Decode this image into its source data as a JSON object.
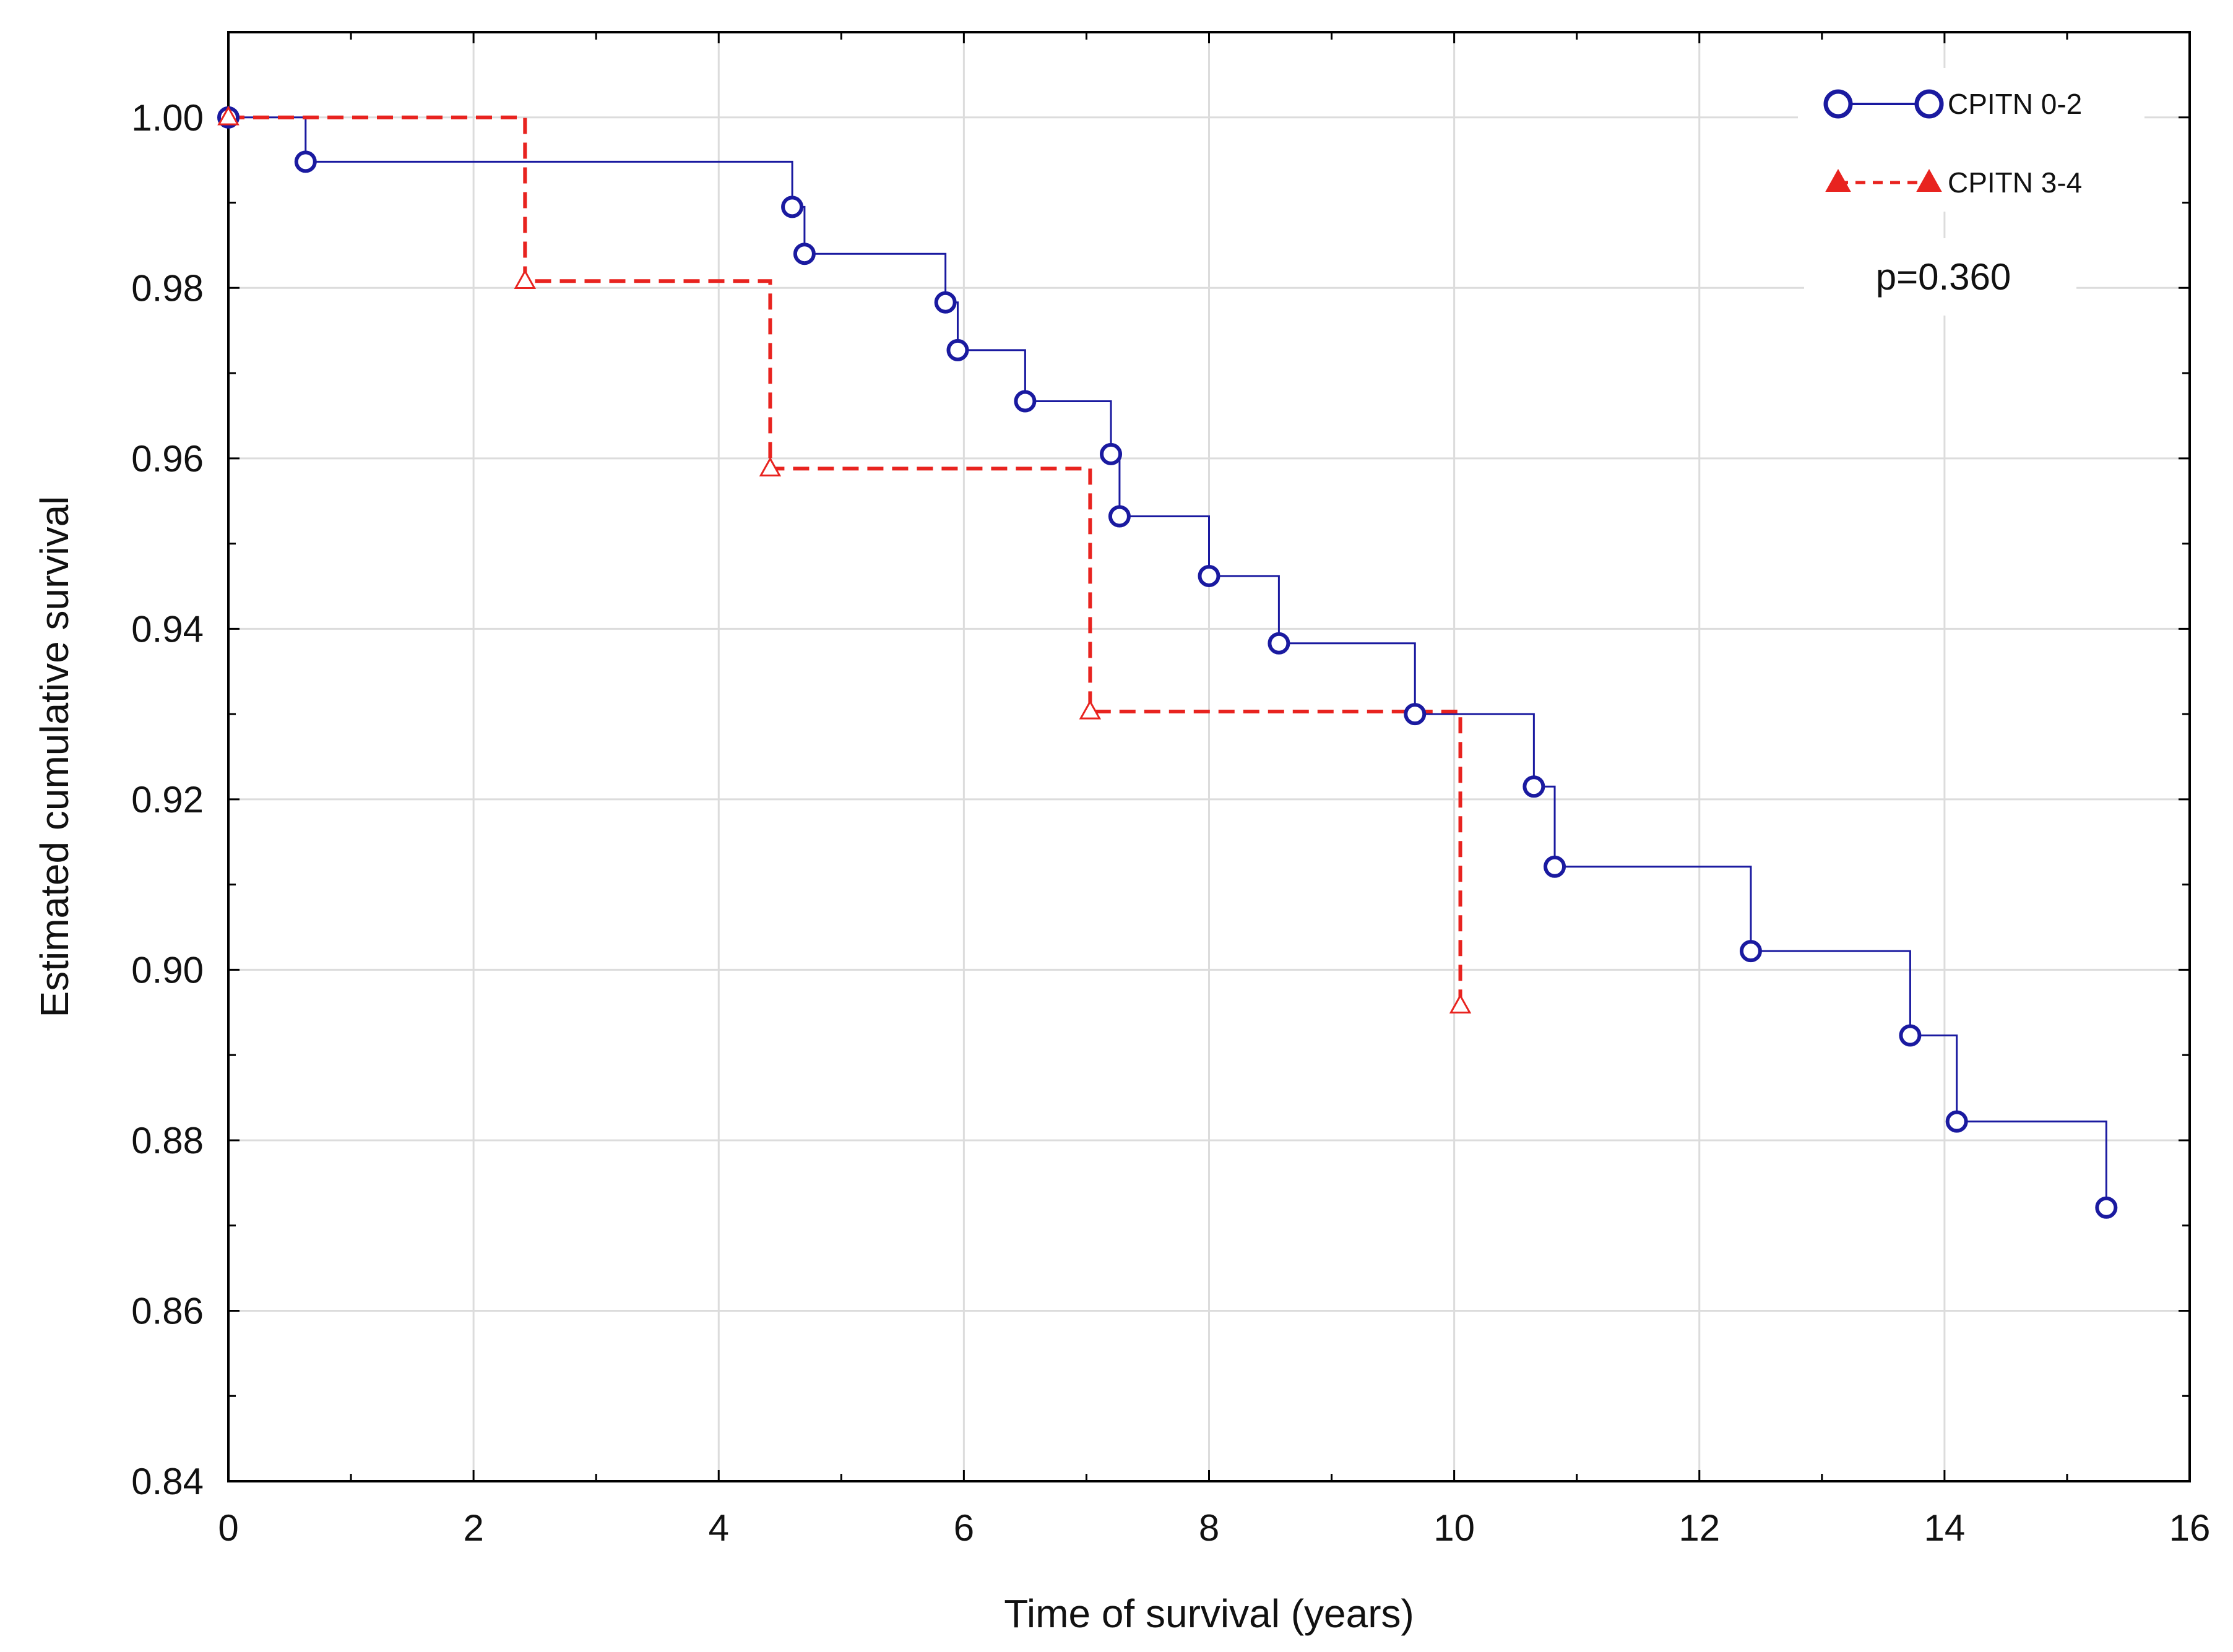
{
  "chart_data": {
    "type": "line",
    "subtype": "kaplan-meier step",
    "title": "",
    "xlabel": "Time of survival (years)",
    "ylabel": "Estimated cumulative survival",
    "xlim": [
      0,
      16
    ],
    "ylim": [
      0.84,
      1.01
    ],
    "x_ticks": [
      0,
      2,
      4,
      6,
      8,
      10,
      12,
      14,
      16
    ],
    "x_tick_labels": [
      "0",
      "2",
      "4",
      "6",
      "8",
      "10",
      "12",
      "14",
      "16"
    ],
    "y_ticks": [
      0.84,
      0.86,
      0.88,
      0.9,
      0.92,
      0.94,
      0.96,
      0.98,
      1.0
    ],
    "y_tick_labels": [
      "0.84",
      "0.86",
      "0.88",
      "0.90",
      "0.92",
      "0.94",
      "0.96",
      "0.98",
      "1.00"
    ],
    "grid": true,
    "legend_position": "top-right",
    "annotation": "p=0.360",
    "series": [
      {
        "name": "CPITN 0-2",
        "color": "#1a1aa0",
        "line_style": "solid",
        "marker": "circle",
        "x": [
          0,
          0.63,
          4.6,
          4.7,
          5.85,
          5.95,
          6.5,
          7.2,
          7.27,
          8.0,
          8.57,
          9.68,
          10.65,
          10.82,
          12.42,
          13.72,
          14.1,
          15.32
        ],
        "y": [
          1.0,
          0.9948,
          0.9895,
          0.984,
          0.9783,
          0.9727,
          0.9667,
          0.9605,
          0.9532,
          0.9462,
          0.9383,
          0.93,
          0.9215,
          0.9121,
          0.9022,
          0.8923,
          0.8822,
          0.8721
        ]
      },
      {
        "name": "CPITN 3-4",
        "color": "#e8231f",
        "line_style": "dashed",
        "marker": "triangle",
        "x": [
          0,
          2.42,
          4.42,
          7.03,
          10.05
        ],
        "y": [
          1.0,
          0.9808,
          0.9588,
          0.9303,
          0.8958
        ]
      }
    ]
  }
}
